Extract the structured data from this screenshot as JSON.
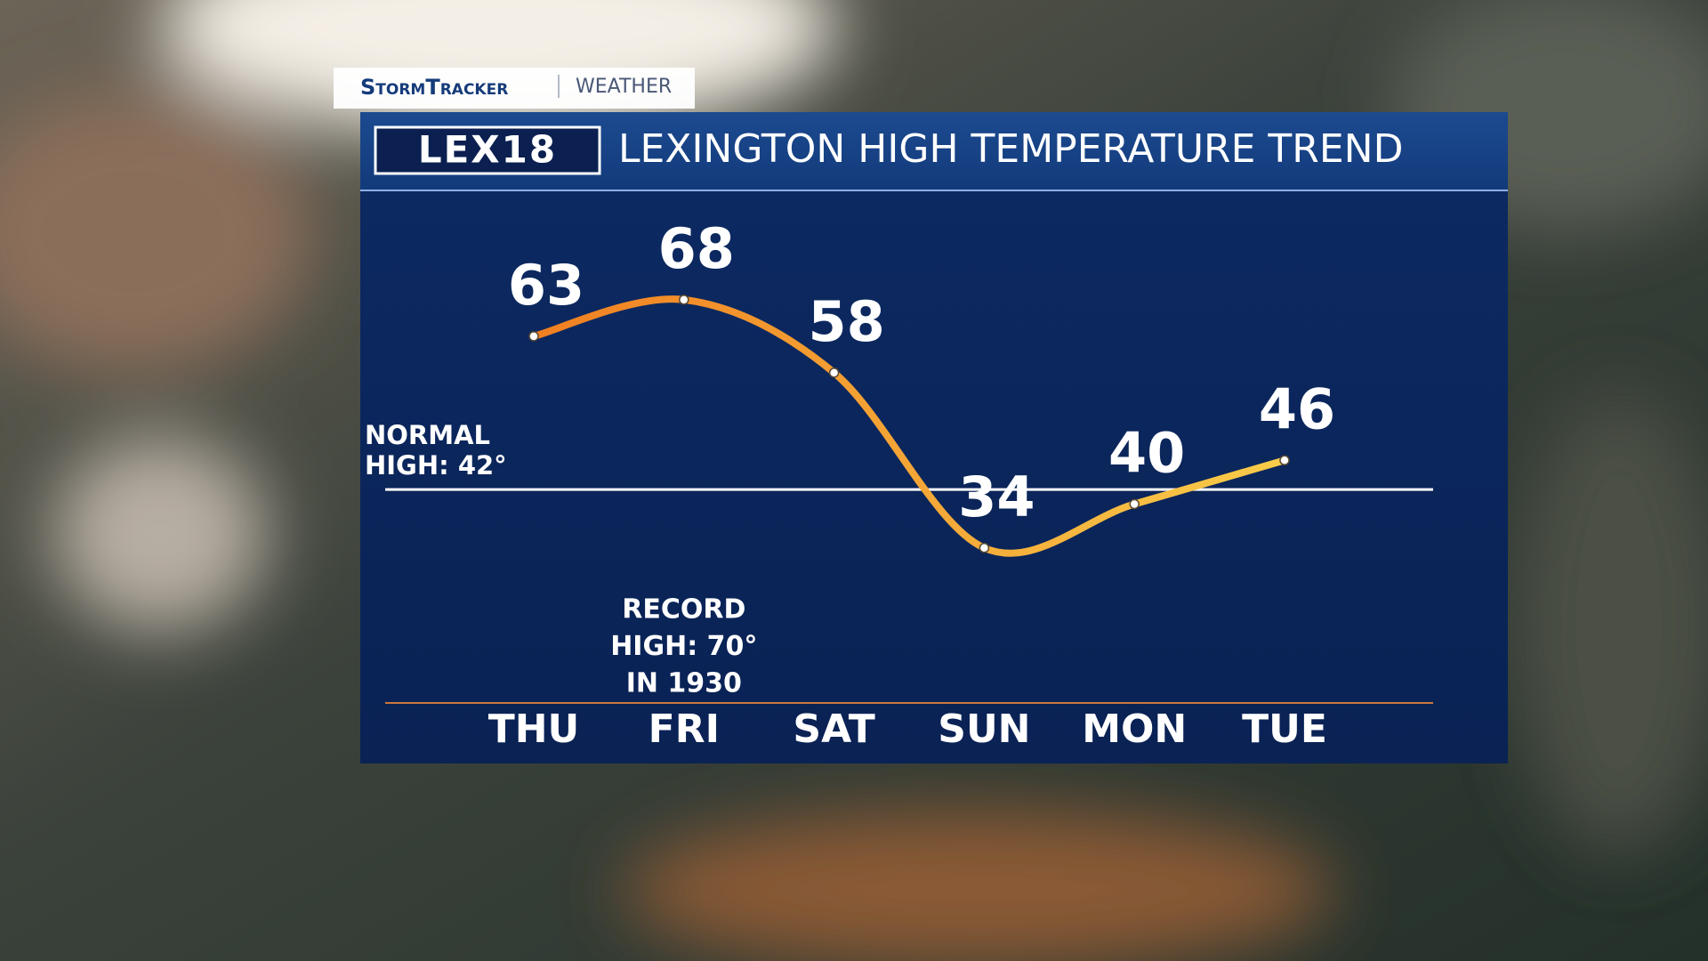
{
  "branding": {
    "brand": "StormTracker",
    "section": "WEATHER",
    "logo": "LEX18"
  },
  "chart_data": {
    "type": "line",
    "title": "LEXINGTON HIGH TEMPERATURE TREND",
    "categories": [
      "THU",
      "FRI",
      "SAT",
      "SUN",
      "MON",
      "TUE"
    ],
    "values": [
      63,
      68,
      58,
      34,
      40,
      46
    ],
    "colors": [
      "#f07f22",
      "#f8cc4a"
    ],
    "ylim": [
      13,
      82
    ],
    "normal": {
      "value": 42,
      "label_lines": [
        "NORMAL",
        "HIGH: 42°"
      ]
    },
    "record_note": [
      "RECORD",
      "HIGH: 70°",
      "IN 1930"
    ]
  }
}
